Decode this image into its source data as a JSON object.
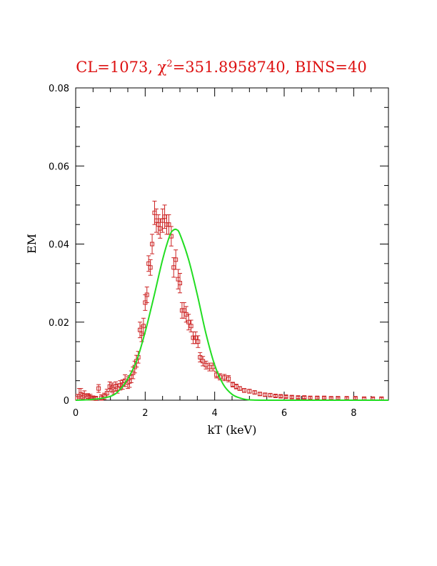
{
  "chart_data": {
    "type": "scatter",
    "title_parts": {
      "prefix": "CL=1073,  ",
      "chi": "χ",
      "sup": "2",
      "suffix": "=351.8958740,  BINS=40"
    },
    "xlabel": "kT (keV)",
    "ylabel": "EM",
    "xlim": [
      0,
      9
    ],
    "ylim": [
      0,
      0.08
    ],
    "xticks": [
      0,
      2,
      4,
      6,
      8
    ],
    "xtick_labels": [
      "0",
      "2",
      "4",
      "6",
      "8"
    ],
    "yticks": [
      0,
      0.02,
      0.04,
      0.06,
      0.08
    ],
    "ytick_labels": [
      "0",
      "0.02",
      "0.04",
      "0.06",
      "0.08"
    ],
    "grid": false,
    "colors": {
      "points": "#cc2222",
      "fit": "#22dd22",
      "title": "#dd1111",
      "axes": "#000000"
    },
    "series": [
      {
        "kind": "points_with_errorbars",
        "x": [
          0.05,
          0.1,
          0.15,
          0.2,
          0.25,
          0.3,
          0.35,
          0.42,
          0.5,
          0.58,
          0.66,
          0.74,
          0.82,
          0.9,
          0.98,
          1.05,
          1.1,
          1.15,
          1.2,
          1.28,
          1.35,
          1.42,
          1.5,
          1.55,
          1.6,
          1.65,
          1.7,
          1.75,
          1.8,
          1.85,
          1.9,
          1.95,
          2.0,
          2.05,
          2.1,
          2.15,
          2.2,
          2.27,
          2.32,
          2.38,
          2.43,
          2.5,
          2.56,
          2.62,
          2.68,
          2.75,
          2.82,
          2.88,
          2.95,
          3.0,
          3.06,
          3.12,
          3.18,
          3.25,
          3.32,
          3.38,
          3.45,
          3.52,
          3.58,
          3.66,
          3.75,
          3.85,
          3.95,
          4.05,
          4.15,
          4.28,
          4.4,
          4.52,
          4.62,
          4.72,
          4.85,
          5.0,
          5.15,
          5.3,
          5.45,
          5.6,
          5.75,
          5.9,
          6.05,
          6.22,
          6.4,
          6.58,
          6.75,
          6.95,
          7.15,
          7.35,
          7.55,
          7.8,
          8.05,
          8.3,
          8.55,
          8.8
        ],
        "y": [
          0.0005,
          0.001,
          0.0015,
          0.0008,
          0.0012,
          0.0006,
          0.0009,
          0.0007,
          0.0005,
          0.0004,
          0.003,
          0.0006,
          0.001,
          0.0018,
          0.0035,
          0.0032,
          0.0028,
          0.0035,
          0.003,
          0.0038,
          0.004,
          0.005,
          0.0045,
          0.0048,
          0.006,
          0.007,
          0.0085,
          0.01,
          0.011,
          0.018,
          0.017,
          0.019,
          0.025,
          0.027,
          0.035,
          0.034,
          0.04,
          0.048,
          0.046,
          0.045,
          0.044,
          0.046,
          0.047,
          0.045,
          0.045,
          0.042,
          0.034,
          0.036,
          0.031,
          0.03,
          0.023,
          0.023,
          0.022,
          0.02,
          0.019,
          0.016,
          0.016,
          0.015,
          0.011,
          0.01,
          0.009,
          0.0085,
          0.0085,
          0.0065,
          0.006,
          0.0058,
          0.0055,
          0.004,
          0.0035,
          0.003,
          0.0025,
          0.0023,
          0.002,
          0.0016,
          0.0014,
          0.0013,
          0.0011,
          0.001,
          0.0009,
          0.0008,
          0.0007,
          0.0007,
          0.0006,
          0.0006,
          0.0006,
          0.0005,
          0.0005,
          0.0005,
          0.0005,
          0.0004,
          0.0004,
          0.0004
        ],
        "err": [
          0.001,
          0.002,
          0.0015,
          0.001,
          0.0012,
          0.0008,
          0.0008,
          0.0008,
          0.0006,
          0.0006,
          0.001,
          0.0008,
          0.0008,
          0.001,
          0.0012,
          0.0012,
          0.0012,
          0.0012,
          0.0012,
          0.0012,
          0.0012,
          0.0015,
          0.0015,
          0.0015,
          0.0015,
          0.0015,
          0.0015,
          0.0015,
          0.0015,
          0.002,
          0.002,
          0.002,
          0.002,
          0.002,
          0.002,
          0.002,
          0.0025,
          0.003,
          0.003,
          0.0025,
          0.0025,
          0.003,
          0.003,
          0.0025,
          0.0025,
          0.0025,
          0.0025,
          0.0025,
          0.0025,
          0.0025,
          0.002,
          0.002,
          0.002,
          0.002,
          0.0015,
          0.0015,
          0.0015,
          0.0015,
          0.0012,
          0.0012,
          0.001,
          0.001,
          0.001,
          0.0008,
          0.0008,
          0.0008,
          0.0008,
          0.0006,
          0.0006,
          0.0005,
          0.0005,
          0.0005,
          0.0004,
          0.0004,
          0.0004,
          0.0004,
          0.0003,
          0.0003,
          0.0003,
          0.0003,
          0.0003,
          0.0003,
          0.0003,
          0.0003,
          0.0003,
          0.0003,
          0.0003,
          0.0003,
          0.0003,
          0.0003,
          0.0003,
          0.0003
        ]
      },
      {
        "kind": "fit_curve",
        "x": [
          0.0,
          0.5,
          1.0,
          1.25,
          1.5,
          1.75,
          2.0,
          2.25,
          2.5,
          2.7,
          2.8,
          2.9,
          3.0,
          3.25,
          3.5,
          3.75,
          4.0,
          4.25,
          4.5,
          4.75,
          5.0,
          5.5,
          6.0,
          7.0,
          8.0,
          9.0
        ],
        "y": [
          0.0,
          0.0002,
          0.001,
          0.0025,
          0.0055,
          0.01,
          0.0175,
          0.0265,
          0.036,
          0.042,
          0.0435,
          0.0437,
          0.0425,
          0.036,
          0.027,
          0.017,
          0.009,
          0.004,
          0.0015,
          0.0005,
          0.0001,
          0.0,
          0.0,
          0.0,
          0.0,
          0.0
        ]
      }
    ]
  }
}
